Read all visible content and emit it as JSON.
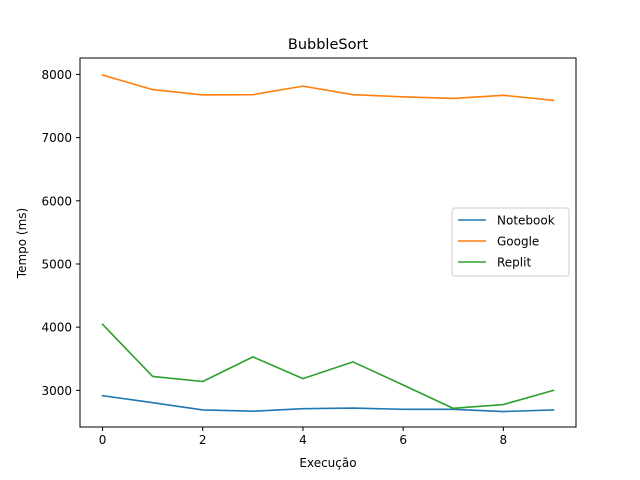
{
  "chart_data": {
    "type": "line",
    "title": "BubbleSort",
    "xlabel": "Execução",
    "ylabel": "Tempo (ms)",
    "x": [
      0,
      1,
      2,
      3,
      4,
      5,
      6,
      7,
      8,
      9
    ],
    "xlim": [
      -0.45,
      9.45
    ],
    "ylim": [
      2420,
      8260
    ],
    "xticks": [
      0,
      2,
      4,
      6,
      8
    ],
    "yticks": [
      3000,
      4000,
      5000,
      6000,
      7000,
      8000
    ],
    "grid": false,
    "legend_position": "center-right",
    "series": [
      {
        "name": "Notebook",
        "color": "#1f77b4",
        "values": [
          2915,
          2805,
          2690,
          2670,
          2710,
          2720,
          2700,
          2700,
          2665,
          2690
        ]
      },
      {
        "name": "Google",
        "color": "#ff7f0e",
        "values": [
          7990,
          7760,
          7675,
          7680,
          7815,
          7680,
          7645,
          7620,
          7670,
          7590
        ]
      },
      {
        "name": "Replit",
        "color": "#2ca02c",
        "values": [
          4045,
          3220,
          3140,
          3530,
          3185,
          3450,
          3085,
          2715,
          2775,
          3000
        ]
      }
    ]
  }
}
